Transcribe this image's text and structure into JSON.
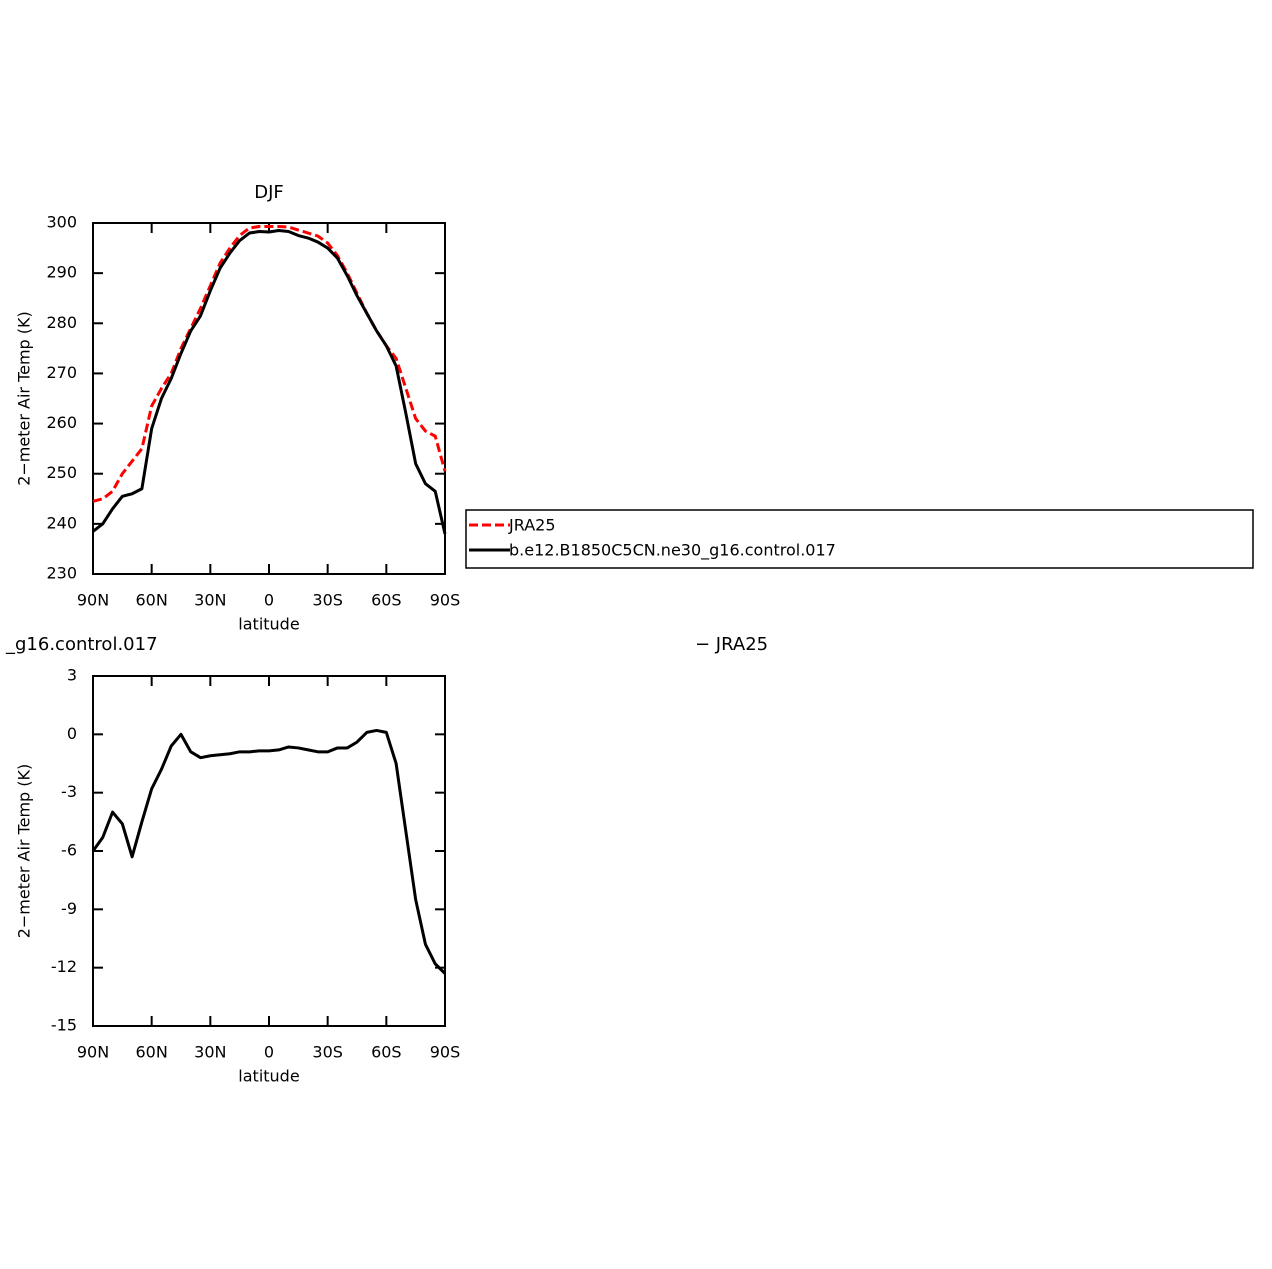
{
  "chart_data": [
    {
      "type": "line",
      "title": "DJF",
      "xlabel": "latitude",
      "ylabel": "2−meter Air Temp (K)",
      "x": [
        90,
        85,
        80,
        75,
        70,
        65,
        60,
        55,
        50,
        45,
        40,
        35,
        30,
        25,
        20,
        15,
        10,
        5,
        0,
        -5,
        -10,
        -15,
        -20,
        -25,
        -30,
        -35,
        -40,
        -45,
        -50,
        -55,
        -60,
        -65,
        -70,
        -75,
        -80,
        -85,
        -90
      ],
      "series": [
        {
          "name": "JRA25",
          "color": "#ff0000",
          "dashed": true,
          "values": [
            244.5,
            245,
            246.5,
            250,
            252.5,
            255,
            263.5,
            267,
            270,
            275,
            279,
            283,
            287.5,
            292,
            295,
            297.5,
            299,
            299.3,
            299.3,
            299.3,
            299.2,
            298.6,
            298,
            297.4,
            296,
            293.5,
            290,
            286,
            282,
            278.5,
            275.5,
            273,
            267,
            261,
            258.5,
            257.5,
            250.5
          ]
        },
        {
          "name": "b.e12.B1850C5CN.ne30_g16.control.017",
          "color": "#000000",
          "dashed": false,
          "values": [
            238.5,
            240,
            243,
            245.5,
            246,
            247,
            259,
            265,
            269,
            274,
            278.5,
            281.5,
            286.5,
            291,
            294,
            296.5,
            298,
            298.3,
            298.2,
            298.5,
            298.3,
            297.5,
            297,
            296.2,
            295,
            293,
            289.5,
            285.5,
            282,
            278.5,
            275.5,
            271.5,
            262,
            252,
            248,
            246.5,
            238
          ]
        }
      ],
      "xlim": [
        90,
        -90
      ],
      "xticks": [
        {
          "value": 90,
          "label": "90N"
        },
        {
          "value": 60,
          "label": "60N"
        },
        {
          "value": 30,
          "label": "30N"
        },
        0,
        {
          "value": -30,
          "label": "30S"
        },
        {
          "value": -60,
          "label": "60S"
        },
        {
          "value": -90,
          "label": "90S"
        }
      ],
      "ylim": [
        230,
        300
      ],
      "yticks": [
        230,
        240,
        250,
        260,
        270,
        280,
        290,
        300
      ],
      "legend": true
    },
    {
      "type": "line",
      "title_left": "_g16.control.017",
      "title_right": "− JRA25",
      "xlabel": "latitude",
      "ylabel": "2−meter Air Temp (K)",
      "x": [
        90,
        85,
        80,
        75,
        70,
        65,
        60,
        55,
        50,
        45,
        40,
        35,
        30,
        25,
        20,
        15,
        10,
        5,
        0,
        -5,
        -10,
        -15,
        -20,
        -25,
        -30,
        -35,
        -40,
        -45,
        -50,
        -55,
        -60,
        -65,
        -70,
        -75,
        -80,
        -85,
        -90
      ],
      "series": [
        {
          "color": "#000000",
          "dashed": false,
          "values": [
            -6,
            -5.3,
            -4,
            -4.6,
            -6.3,
            -4.5,
            -2.8,
            -1.8,
            -0.6,
            0,
            -0.9,
            -1.2,
            -1.1,
            -1.05,
            -1,
            -0.9,
            -0.9,
            -0.85,
            -0.85,
            -0.8,
            -0.65,
            -0.7,
            -0.8,
            -0.9,
            -0.9,
            -0.7,
            -0.7,
            -0.4,
            0.1,
            0.2,
            0.1,
            -1.5,
            -5,
            -8.5,
            -10.8,
            -11.8,
            -12.3
          ]
        }
      ],
      "xlim": [
        90,
        -90
      ],
      "xticks": [
        {
          "value": 90,
          "label": "90N"
        },
        {
          "value": 60,
          "label": "60N"
        },
        {
          "value": 30,
          "label": "30N"
        },
        0,
        {
          "value": -30,
          "label": "30S"
        },
        {
          "value": -60,
          "label": "60S"
        },
        {
          "value": -90,
          "label": "90S"
        }
      ],
      "ylim": [
        -15,
        3
      ],
      "yticks": [
        -15,
        -12,
        -9,
        -6,
        -3,
        0,
        3
      ],
      "legend": false
    }
  ]
}
